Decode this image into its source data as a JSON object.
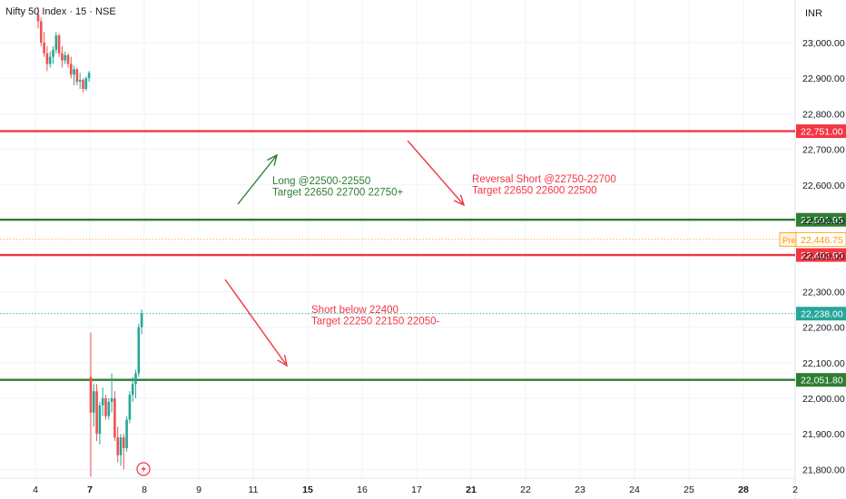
{
  "header": {
    "symbol_title": "Nifty 50 Index · 15 · NSE",
    "currency": "INR"
  },
  "colors": {
    "up": "#26a69a",
    "down": "#ef5350",
    "red_line": "#f23645",
    "green_line": "#2e7d32",
    "grid": "#f0f3fa",
    "axis_text": "#131722",
    "pre_label": "#ff9800"
  },
  "chart_data": {
    "type": "candlestick",
    "ylim": [
      21760,
      23110
    ],
    "y_ticks": [
      23000,
      22900,
      22800,
      22700,
      22600,
      22500,
      22400,
      22300,
      22200,
      22100,
      22000,
      21900,
      21800
    ],
    "y_tick_labels": [
      "23,000.00",
      "22,900.00",
      "22,800.00",
      "22,700.00",
      "22,600.00",
      "22,500.00",
      "22,400.00",
      "22,300.00",
      "22,200.00",
      "22,100.00",
      "22,000.00",
      "21,900.00",
      "21,800.00"
    ],
    "x_tick_labels": [
      "4",
      "7",
      "8",
      "9",
      "11",
      "15",
      "16",
      "17",
      "21",
      "22",
      "23",
      "24",
      "25",
      "28",
      "2"
    ],
    "x_tick_bold": [
      "7",
      "15",
      "21",
      "28"
    ],
    "horizontal_levels": [
      {
        "value": 22751.0,
        "label": "22,751.00",
        "color": "red"
      },
      {
        "value": 22501.95,
        "label": "22,501.95",
        "color": "green"
      },
      {
        "value": 22402.9,
        "label": "22,402.90",
        "color": "red"
      },
      {
        "value": 22051.8,
        "label": "22,051.80",
        "color": "green"
      }
    ],
    "price_markers": [
      {
        "value": 22446.75,
        "label": "22,446.75",
        "tag": "Pre",
        "style": "dotted-orange"
      },
      {
        "value": 22238.0,
        "label": "22,238.00",
        "style": "dotted-teal"
      }
    ],
    "annotations": [
      {
        "id": "long",
        "lines": [
          "Long @22500-22550",
          "Target 22650 22700 22750+"
        ],
        "color": "green",
        "arrow": "up"
      },
      {
        "id": "reversal",
        "lines": [
          "Reversal Short @22750-22700",
          "Target 22650 22600 22500"
        ],
        "color": "red",
        "arrow": "down"
      },
      {
        "id": "short",
        "lines": [
          "Short below 22400",
          "Target 22250 22150 22050-"
        ],
        "color": "red",
        "arrow": "down"
      }
    ],
    "candles_session1": [
      [
        23080,
        23100,
        23040,
        23060
      ],
      [
        23060,
        23070,
        22990,
        23000
      ],
      [
        23000,
        23030,
        22960,
        22970
      ],
      [
        22970,
        22990,
        22920,
        22940
      ],
      [
        22940,
        22975,
        22930,
        22960
      ],
      [
        22960,
        22990,
        22940,
        22980
      ],
      [
        22980,
        23030,
        22970,
        23020
      ],
      [
        23020,
        23025,
        22960,
        22970
      ],
      [
        22970,
        22990,
        22930,
        22950
      ],
      [
        22950,
        22975,
        22940,
        22965
      ],
      [
        22965,
        22970,
        22930,
        22940
      ],
      [
        22940,
        22960,
        22900,
        22910
      ],
      [
        22910,
        22935,
        22880,
        22925
      ],
      [
        22925,
        22930,
        22880,
        22890
      ],
      [
        22890,
        22915,
        22870,
        22895
      ],
      [
        22895,
        22900,
        22860,
        22870
      ],
      [
        22870,
        22905,
        22865,
        22900
      ],
      [
        22900,
        22920,
        22890,
        22915
      ]
    ],
    "candles_session2": [
      [
        22060,
        22185,
        21780,
        21960
      ],
      [
        21960,
        22040,
        21920,
        22020
      ],
      [
        22020,
        22040,
        21880,
        21900
      ],
      [
        21900,
        21990,
        21870,
        21980
      ],
      [
        21980,
        22030,
        21950,
        22000
      ],
      [
        22000,
        22010,
        21940,
        21950
      ],
      [
        21950,
        22000,
        21940,
        21990
      ],
      [
        21990,
        22070,
        21960,
        22000
      ],
      [
        22000,
        22020,
        21880,
        21890
      ],
      [
        21890,
        21920,
        21820,
        21840
      ],
      [
        21840,
        21900,
        21810,
        21890
      ],
      [
        21890,
        21900,
        21800,
        21860
      ],
      [
        21860,
        21950,
        21850,
        21940
      ],
      [
        21940,
        22020,
        21930,
        22010
      ],
      [
        22010,
        22060,
        21990,
        22040
      ],
      [
        22040,
        22080,
        22000,
        22070
      ],
      [
        22070,
        22210,
        22060,
        22200
      ],
      [
        22200,
        22250,
        22180,
        22238
      ]
    ]
  }
}
